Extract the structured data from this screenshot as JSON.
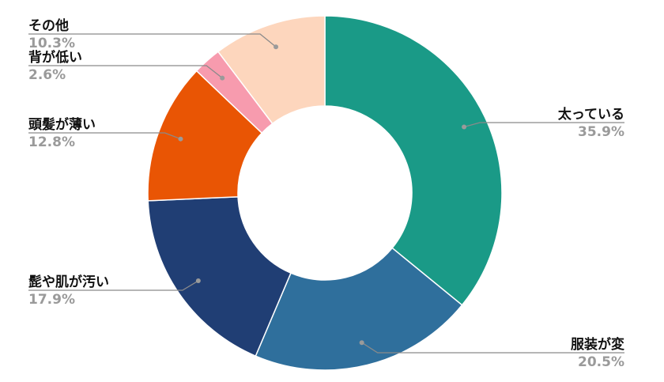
{
  "chart_data": {
    "type": "pie",
    "donut": true,
    "title": "",
    "slices": [
      {
        "label": "太っている",
        "value": 35.9,
        "display": "35.9%",
        "color": "#1a9a87",
        "side": "right"
      },
      {
        "label": "服装が変",
        "value": 20.5,
        "display": "20.5%",
        "color": "#2f6f9c",
        "side": "right"
      },
      {
        "label": "髭や肌が汚い",
        "value": 17.9,
        "display": "17.9%",
        "color": "#203e74",
        "side": "left"
      },
      {
        "label": "頭髪が薄い",
        "value": 12.8,
        "display": "12.8%",
        "color": "#e95504",
        "side": "left"
      },
      {
        "label": "背が低い",
        "value": 2.6,
        "display": "2.6%",
        "color": "#f79bae",
        "side": "left"
      },
      {
        "label": "その他",
        "value": 10.3,
        "display": "10.3%",
        "color": "#fdd6bd",
        "side": "left"
      }
    ],
    "legend": "none"
  }
}
